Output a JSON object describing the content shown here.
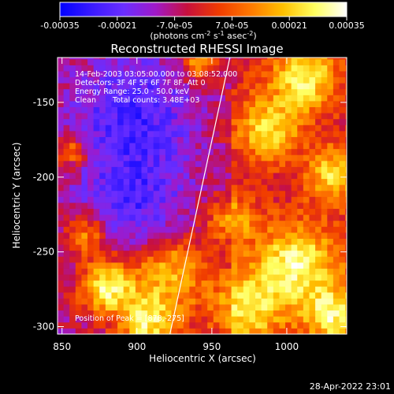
{
  "chart_data": {
    "type": "heatmap",
    "title": "Reconstructed RHESSI Image",
    "xlabel": "Heliocentric X (arcsec)",
    "ylabel": "Heliocentric Y (arcsec)",
    "xlim": [
      847,
      1040
    ],
    "ylim": [
      -305,
      -120
    ],
    "xticks": [
      850,
      900,
      950,
      1000
    ],
    "yticks": [
      -150,
      -200,
      -250,
      -300
    ],
    "colorbar": {
      "range": [
        -0.00035,
        0.00035
      ],
      "ticks": [
        "-0.00035",
        "-0.00021",
        "-7.0e-05",
        "7.0e-05",
        "0.00021",
        "0.00035"
      ],
      "unit_text": "(photons cm",
      "unit_sup1": "-2",
      "unit_mid": " s",
      "unit_sup2": "-1",
      "unit_tail": " asec",
      "unit_sup3": "-2",
      "unit_end": ")",
      "colormap": [
        "#0000ff",
        "#3a1aff",
        "#6a2eff",
        "#a019c8",
        "#c8103c",
        "#f03c00",
        "#ff7a00",
        "#ffc000",
        "#ffff60",
        "#ffffff"
      ]
    },
    "annotations": {
      "time_range": "14-Feb-2003 03:05:00.000 to 03:08:52.000",
      "detectors": "Detectors: 3F 4F 5F 6F 7F 8F, Att 0",
      "energy_range": "Energy Range: 25.0 - 50.0 keV",
      "method": "Clean",
      "total_counts": "Total counts: 3.48E+03",
      "peak": "Position of Peak = [878,-275]"
    },
    "peak_position": [
      878,
      -275
    ],
    "limb_line": {
      "x": [
        922,
        962
      ],
      "y": [
        -305,
        -120
      ]
    },
    "hot_regions": [
      {
        "x": 878,
        "y": -275,
        "r": 18,
        "level": 1.0
      },
      {
        "x": 905,
        "y": -300,
        "r": 20,
        "level": 0.9
      },
      {
        "x": 920,
        "y": -265,
        "r": 25,
        "level": 0.75
      },
      {
        "x": 865,
        "y": -240,
        "r": 14,
        "level": 0.65
      },
      {
        "x": 1010,
        "y": -135,
        "r": 22,
        "level": 0.85
      },
      {
        "x": 985,
        "y": -170,
        "r": 22,
        "level": 0.7
      },
      {
        "x": 1030,
        "y": -200,
        "r": 18,
        "level": 0.75
      },
      {
        "x": 1005,
        "y": -260,
        "r": 28,
        "level": 0.85
      },
      {
        "x": 970,
        "y": -290,
        "r": 26,
        "level": 0.75
      },
      {
        "x": 1030,
        "y": -295,
        "r": 20,
        "level": 0.8
      },
      {
        "x": 940,
        "y": -125,
        "r": 12,
        "level": 0.7
      },
      {
        "x": 855,
        "y": -185,
        "r": 10,
        "level": 0.6
      },
      {
        "x": 960,
        "y": -230,
        "r": 16,
        "level": 0.6
      }
    ],
    "cold_regions": [
      {
        "x": 895,
        "y": -160,
        "r": 40,
        "level": -0.5
      },
      {
        "x": 895,
        "y": -220,
        "r": 35,
        "level": -0.45
      }
    ]
  },
  "footer": {
    "date": "28-Apr-2022 23:01"
  }
}
